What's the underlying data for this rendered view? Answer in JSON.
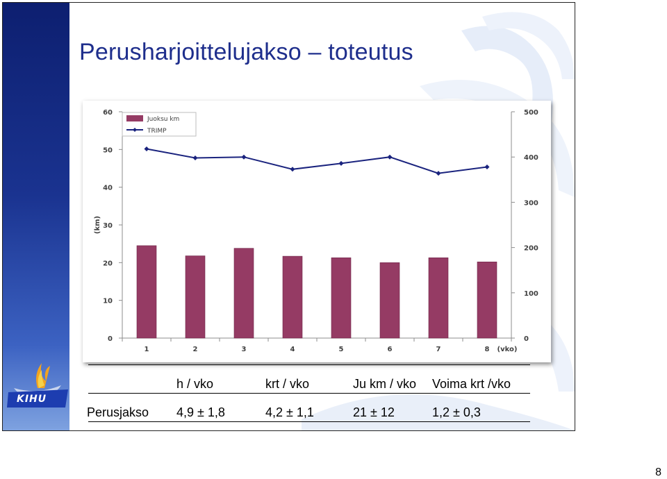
{
  "slide": {
    "title": "Perusharjoittelujakso – toteutus",
    "page_number": "8"
  },
  "logo": {
    "text": "KIHU"
  },
  "chart_data": {
    "type": "bar",
    "categories": [
      "1",
      "2",
      "3",
      "4",
      "5",
      "6",
      "7",
      "8"
    ],
    "xlabel": "(vko)",
    "ylabel": "(km)",
    "ylim": [
      0,
      60
    ],
    "yticks": [
      0,
      10,
      20,
      30,
      40,
      50,
      60
    ],
    "y2lim": [
      0,
      500
    ],
    "y2ticks": [
      0,
      100,
      200,
      300,
      400,
      500
    ],
    "grid": false,
    "legend_position": "top-left",
    "series": [
      {
        "name": "Juoksu km",
        "type": "bar",
        "axis": "left",
        "color": "#953b64",
        "values": [
          24.5,
          21.8,
          23.8,
          21.7,
          21.3,
          20.0,
          21.3,
          20.2
        ]
      },
      {
        "name": "TRIMP",
        "type": "line",
        "axis": "right",
        "color": "#1a237e",
        "values": [
          418,
          398,
          400,
          373,
          386,
          400,
          364,
          378
        ]
      }
    ]
  },
  "table": {
    "headers": [
      "h / vko",
      "krt / vko",
      "Ju km / vko",
      "Voima krt /vko"
    ],
    "rows": [
      {
        "label": "Perusjakso",
        "values": [
          "4,9 ± 1,8",
          "4,2 ± 1,1",
          "21 ± 12",
          "1,2 ± 0,3"
        ]
      }
    ]
  }
}
